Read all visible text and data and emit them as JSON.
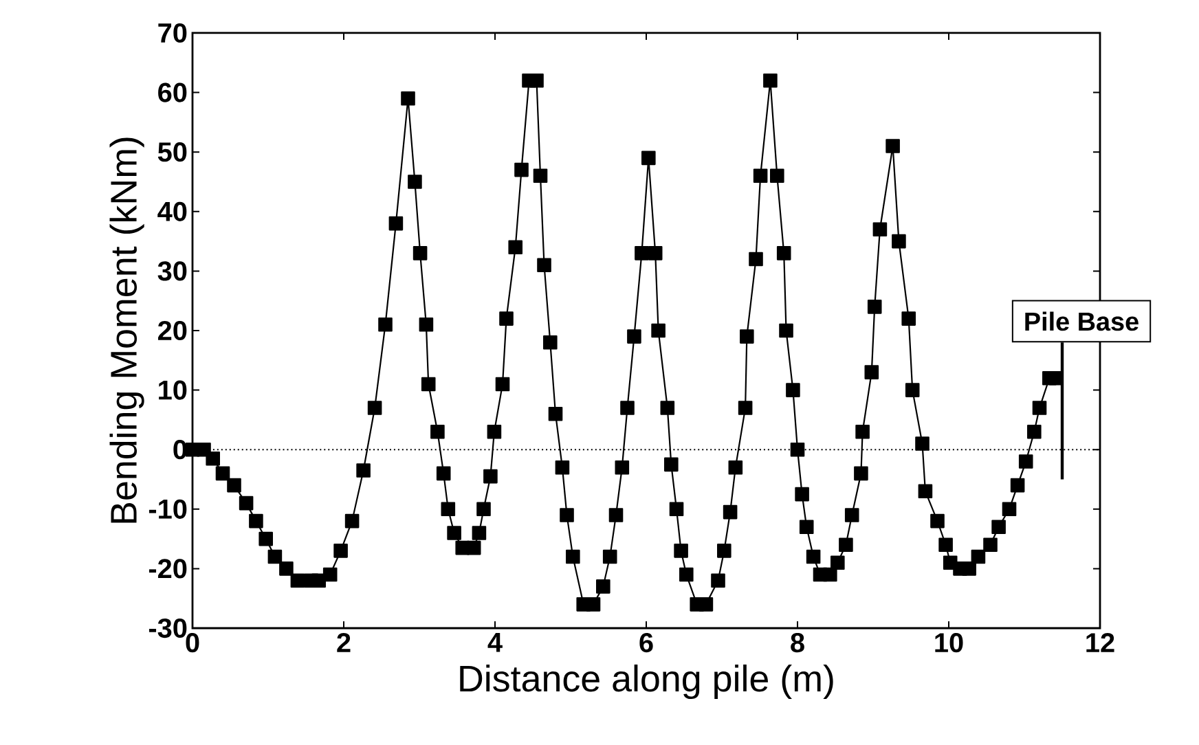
{
  "chart_data": {
    "type": "line",
    "xlabel": "Distance along pile (m)",
    "ylabel": "Bending Moment (kNm)",
    "xlim": [
      0,
      12
    ],
    "xticks": [
      0,
      2,
      4,
      6,
      8,
      10,
      12
    ],
    "ylim": [
      -30,
      70
    ],
    "yticks": [
      -30,
      -20,
      -10,
      0,
      10,
      20,
      30,
      40,
      50,
      60,
      70
    ],
    "marker": "square",
    "line_style": "solid",
    "ref_lines": [
      {
        "axis": "y",
        "value": 0,
        "line_style": "dotted",
        "color": "#000000"
      },
      {
        "axis": "x",
        "value": 11.5,
        "label": "Pile Base",
        "line_style": "solid",
        "color": "#000000"
      }
    ],
    "series": [
      {
        "color": "#000000",
        "x": [
          0,
          0.15,
          0.27,
          0.4,
          0.55,
          0.71,
          0.84,
          0.97,
          1.09,
          1.24,
          1.39,
          1.57,
          1.67,
          1.82,
          1.96,
          2.11,
          2.26,
          2.41,
          2.55,
          2.69,
          2.85,
          2.94,
          3.01,
          3.09,
          3.12,
          3.24,
          3.32,
          3.38,
          3.46,
          3.57,
          3.72,
          3.79,
          3.85,
          3.94,
          3.99,
          4.1,
          4.15,
          4.27,
          4.35,
          4.45,
          4.55,
          4.6,
          4.65,
          4.73,
          4.8,
          4.89,
          4.95,
          5.03,
          5.17,
          5.3,
          5.43,
          5.52,
          5.6,
          5.68,
          5.75,
          5.84,
          5.94,
          6.03,
          6.12,
          6.16,
          6.28,
          6.33,
          6.4,
          6.46,
          6.53,
          6.67,
          6.79,
          6.95,
          7.03,
          7.11,
          7.18,
          7.31,
          7.33,
          7.45,
          7.51,
          7.64,
          7.73,
          7.82,
          7.85,
          7.94,
          8.0,
          8.06,
          8.12,
          8.21,
          8.3,
          8.43,
          8.53,
          8.64,
          8.72,
          8.84,
          8.86,
          8.98,
          9.02,
          9.09,
          9.26,
          9.34,
          9.47,
          9.52,
          9.65,
          9.69,
          9.85,
          9.96,
          10.02,
          10.15,
          10.27,
          10.39,
          10.55,
          10.66,
          10.8,
          10.91,
          11.02,
          11.13,
          11.2,
          11.33,
          11.42
        ],
        "values": [
          0,
          0,
          -1.5,
          -4,
          -6,
          -9,
          -12,
          -15,
          -18,
          -20,
          -22,
          -22,
          -22,
          -21,
          -17,
          -12,
          -3.5,
          7,
          21,
          38,
          59,
          45,
          33,
          21,
          11,
          3,
          -4,
          -10,
          -14,
          -16.5,
          -16.5,
          -14,
          -10,
          -4.5,
          3,
          11,
          22,
          34,
          47,
          62,
          62,
          46,
          31,
          18,
          6,
          -3,
          -11,
          -18,
          -26,
          -26,
          -23,
          -18,
          -11,
          -3,
          7,
          19,
          33,
          49,
          33,
          20,
          7,
          -2.5,
          -10,
          -17,
          -21,
          -26,
          -26,
          -22,
          -17,
          -10.5,
          -3,
          7,
          19,
          32,
          46,
          62,
          46,
          33,
          20,
          10,
          0,
          -7.5,
          -13,
          -18,
          -21,
          -21,
          -19,
          -16,
          -11,
          -4,
          3,
          13,
          24,
          37,
          51,
          35,
          22,
          10,
          1,
          -7,
          -12,
          -16,
          -19,
          -20,
          -20,
          -18,
          -16,
          -13,
          -10,
          -6,
          -2,
          3,
          7,
          12,
          12
        ]
      }
    ]
  }
}
